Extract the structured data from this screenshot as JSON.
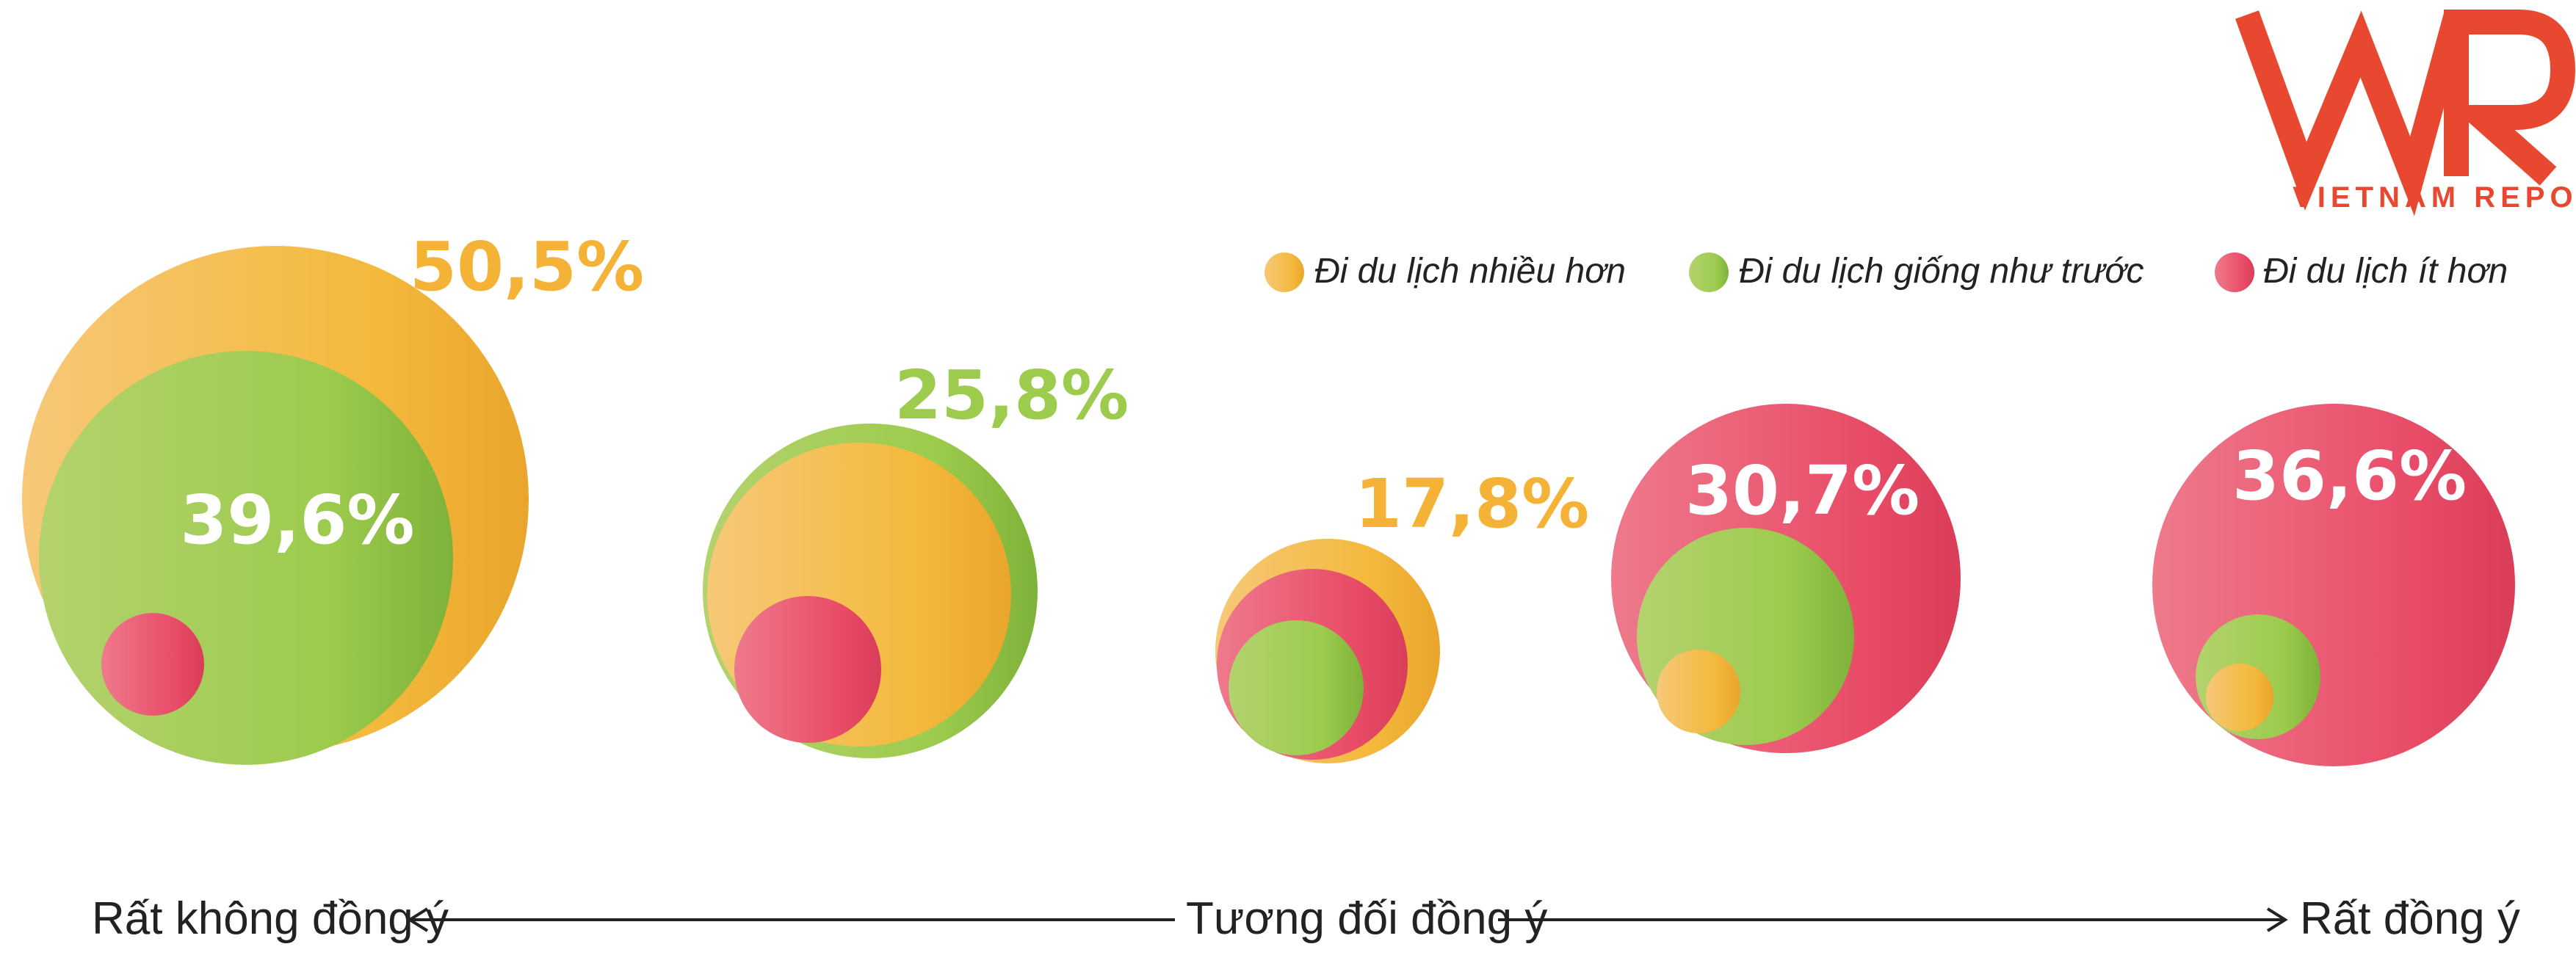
{
  "logo": {
    "mark": "VNR",
    "text": "VIETNAM REPORT"
  },
  "colors": {
    "more": "#f4b336",
    "same": "#9ccb4d",
    "less": "#e94d68",
    "axis": "#222222",
    "logo": "#e8482f"
  },
  "chart_data": {
    "type": "bubble",
    "legend_position": "top-right",
    "series": [
      {
        "key": "more",
        "name": "Đi du lịch nhiều hơn"
      },
      {
        "key": "same",
        "name": "Đi du lịch giống như trước"
      },
      {
        "key": "less",
        "name": "Đi du lịch ít hơn"
      }
    ],
    "groups": [
      {
        "label": "50,5%",
        "label_color": "more",
        "values": {
          "more": 50.5,
          "same": 39.6,
          "less": null
        },
        "shown": {
          "more": "50,5%",
          "same": "39,6%"
        }
      },
      {
        "label": "25,8%",
        "label_color": "same",
        "values": {
          "more": null,
          "same": 25.8,
          "less": null
        },
        "shown": {
          "same": "25,8%"
        }
      },
      {
        "label": "17,8%",
        "label_color": "more",
        "values": {
          "more": 17.8,
          "same": null,
          "less": null
        },
        "shown": {
          "more": "17,8%"
        }
      },
      {
        "label": "30,7%",
        "label_color": "less",
        "values": {
          "more": null,
          "same": null,
          "less": 30.7
        },
        "shown": {
          "less": "30,7%"
        }
      },
      {
        "label": "36,6%",
        "label_color": "less",
        "values": {
          "more": null,
          "same": null,
          "less": 36.6
        },
        "shown": {
          "less": "36,6%"
        }
      }
    ],
    "axis": {
      "left": "Rất không đồng ý",
      "middle": "Tương đối đồng ý",
      "right": "Rất đồng ý"
    }
  }
}
